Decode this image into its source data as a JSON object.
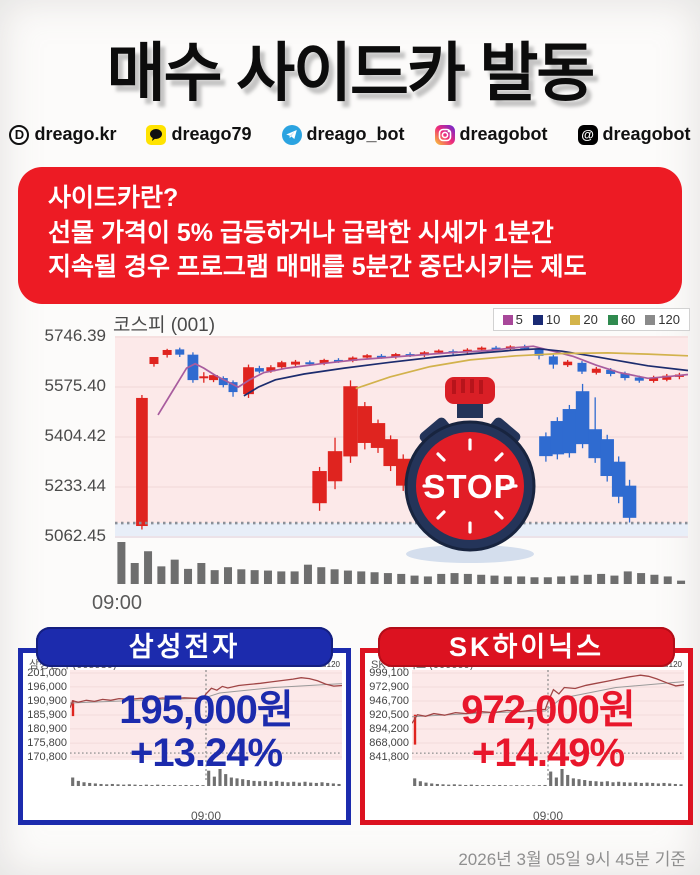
{
  "poster": {
    "title": "매수 사이드카 발동",
    "social": [
      {
        "icon": "blog-d-icon",
        "label": "dreago.kr"
      },
      {
        "icon": "kakao-icon",
        "label": "dreago79"
      },
      {
        "icon": "telegram-icon",
        "label": "dreago_bot"
      },
      {
        "icon": "instagram-icon",
        "label": "dreagobot"
      },
      {
        "icon": "threads-icon",
        "label": "dreagobot"
      }
    ],
    "info_box": {
      "heading": "사이드카란?",
      "line1": "선물 가격이 5% 급등하거나 급락한 시세가 1분간",
      "line2": "지속될 경우 프로그램 매매를 5분간 중단시키는 제도"
    },
    "stopwatch_label": "STOP",
    "footer": "2026년 3월 05일 9시 45분 기준"
  },
  "panels": [
    {
      "header": "삼성전자"
    },
    {
      "header": "SK하이닉스"
    }
  ],
  "colors": {
    "info_red": "#ed1b24",
    "candle_up": "#df241f",
    "candle_down": "#2f6bd0",
    "plot_bg_pink": "#fce9e9",
    "plot_bg_blue": "#e8eef8",
    "grid_pink": "#efd7d7",
    "volume_gray": "#6e6e6e",
    "ref_dotted": "#8a8f98",
    "samsung_blue": "#1c2bad",
    "sk_red": "#dc1220"
  },
  "chart_data": [
    {
      "id": "kospi",
      "type": "candlestick",
      "title": "코스피 (001)",
      "legend": [
        {
          "label": "5",
          "color": "#a8489a"
        },
        {
          "label": "10",
          "color": "#1a2a74"
        },
        {
          "label": "20",
          "color": "#d4b44a"
        },
        {
          "label": "60",
          "color": "#2f8a4f"
        },
        {
          "label": "120",
          "color": "#8a8a8a"
        }
      ],
      "y_tick_labels": [
        "5746.39",
        "5575.40",
        "5404.42",
        "5233.44",
        "5062.45"
      ],
      "x_ticks": [
        "09:00"
      ],
      "prev_close": 5110,
      "candles": [
        [
          0.047,
          5100,
          5548,
          5088,
          5538,
          "u",
          1.3
        ],
        [
          0.068,
          5654,
          5666,
          5645,
          5678,
          "u",
          1
        ],
        [
          0.091,
          5685,
          5706,
          5676,
          5702,
          "u",
          1
        ],
        [
          0.113,
          5704,
          5710,
          5678,
          5686,
          "d",
          1
        ],
        [
          0.136,
          5686,
          5694,
          5590,
          5599,
          "d",
          1.2
        ],
        [
          0.155,
          5607,
          5626,
          5590,
          5612,
          "u",
          1
        ],
        [
          0.172,
          5599,
          5620,
          5592,
          5616,
          "u",
          1
        ],
        [
          0.189,
          5606,
          5612,
          5574,
          5582,
          "d",
          1
        ],
        [
          0.206,
          5592,
          5598,
          5542,
          5558,
          "d",
          1
        ],
        [
          0.233,
          5551,
          5652,
          5538,
          5643,
          "u",
          1.2
        ],
        [
          0.252,
          5640,
          5648,
          5622,
          5628,
          "d",
          1
        ],
        [
          0.272,
          5629,
          5650,
          5624,
          5643,
          "u",
          1
        ],
        [
          0.291,
          5643,
          5665,
          5638,
          5660,
          "u",
          1
        ],
        [
          0.315,
          5652,
          5668,
          5646,
          5662,
          "u",
          1
        ],
        [
          0.34,
          5660,
          5666,
          5648,
          5655,
          "d",
          1
        ],
        [
          0.365,
          5656,
          5672,
          5650,
          5668,
          "u",
          1
        ],
        [
          0.39,
          5668,
          5674,
          5658,
          5664,
          "d",
          1
        ],
        [
          0.415,
          5665,
          5680,
          5660,
          5676,
          "u",
          1
        ],
        [
          0.44,
          5676,
          5688,
          5670,
          5684,
          "u",
          1
        ],
        [
          0.465,
          5682,
          5688,
          5672,
          5676,
          "d",
          1
        ],
        [
          0.49,
          5678,
          5692,
          5672,
          5688,
          "u",
          1
        ],
        [
          0.515,
          5688,
          5694,
          5678,
          5682,
          "d",
          1
        ],
        [
          0.54,
          5684,
          5698,
          5678,
          5694,
          "u",
          1
        ],
        [
          0.565,
          5694,
          5704,
          5688,
          5700,
          "u",
          1
        ],
        [
          0.59,
          5698,
          5704,
          5686,
          5692,
          "d",
          1
        ],
        [
          0.615,
          5694,
          5708,
          5688,
          5703,
          "u",
          1
        ],
        [
          0.64,
          5703,
          5714,
          5698,
          5710,
          "u",
          1
        ],
        [
          0.665,
          5710,
          5716,
          5700,
          5704,
          "d",
          1
        ],
        [
          0.69,
          5706,
          5718,
          5700,
          5714,
          "u",
          1
        ],
        [
          0.715,
          5714,
          5720,
          5702,
          5706,
          "d",
          1
        ],
        [
          0.74,
          5704,
          5712,
          5670,
          5682,
          "d",
          1
        ],
        [
          0.765,
          5680,
          5686,
          5638,
          5652,
          "d",
          1
        ],
        [
          0.79,
          5650,
          5668,
          5644,
          5662,
          "u",
          1
        ],
        [
          0.815,
          5658,
          5664,
          5620,
          5628,
          "d",
          1
        ],
        [
          0.84,
          5624,
          5644,
          5618,
          5638,
          "u",
          1
        ],
        [
          0.865,
          5634,
          5640,
          5612,
          5620,
          "d",
          1
        ],
        [
          0.89,
          5622,
          5628,
          5598,
          5606,
          "d",
          1
        ],
        [
          0.915,
          5608,
          5614,
          5590,
          5597,
          "d",
          1
        ],
        [
          0.94,
          5596,
          5614,
          5590,
          5608,
          "u",
          1
        ],
        [
          0.963,
          5600,
          5620,
          5595,
          5614,
          "u",
          1
        ],
        [
          0.985,
          5610,
          5624,
          5602,
          5618,
          "u",
          1
        ],
        [
          0.357,
          5178,
          5302,
          5152,
          5288,
          "u",
          1.6
        ],
        [
          0.384,
          5253,
          5402,
          5226,
          5356,
          "u",
          1.6
        ],
        [
          0.411,
          5338,
          5598,
          5316,
          5578,
          "u",
          1.6
        ],
        [
          0.436,
          5384,
          5524,
          5362,
          5510,
          "u",
          1.6
        ],
        [
          0.459,
          5367,
          5464,
          5350,
          5452,
          "u",
          1.6
        ],
        [
          0.481,
          5305,
          5410,
          5288,
          5397,
          "u",
          1.6
        ],
        [
          0.503,
          5238,
          5345,
          5220,
          5330,
          "u",
          1.6
        ],
        [
          0.752,
          5339,
          5420,
          5320,
          5407,
          "d",
          1.5
        ],
        [
          0.772,
          5345,
          5472,
          5328,
          5459,
          "d",
          1.5
        ],
        [
          0.793,
          5349,
          5514,
          5334,
          5500,
          "d",
          1.5
        ],
        [
          0.816,
          5380,
          5586,
          5366,
          5561,
          "d",
          1.5
        ],
        [
          0.838,
          5332,
          5540,
          5316,
          5431,
          "d",
          1.5
        ],
        [
          0.859,
          5271,
          5412,
          5252,
          5397,
          "d",
          1.5
        ],
        [
          0.879,
          5200,
          5338,
          5178,
          5320,
          "d",
          1.5
        ],
        [
          0.898,
          5128,
          5258,
          5112,
          5238,
          "d",
          1.5
        ]
      ],
      "ma_lines": {
        "ma5": {
          "color": "#a85c9e",
          "pts": [
            [
              0.075,
              5480
            ],
            [
              0.1,
              5560
            ],
            [
              0.125,
              5640
            ],
            [
              0.14,
              5655
            ],
            [
              0.155,
              5640
            ],
            [
              0.175,
              5615
            ],
            [
              0.2,
              5590
            ],
            [
              0.215,
              5575
            ],
            [
              0.235,
              5600
            ],
            [
              0.26,
              5625
            ],
            [
              0.3,
              5640
            ],
            [
              0.36,
              5655
            ],
            [
              0.42,
              5668
            ],
            [
              0.5,
              5680
            ],
            [
              0.58,
              5692
            ],
            [
              0.65,
              5700
            ],
            [
              0.7,
              5710
            ],
            [
              0.73,
              5715
            ],
            [
              0.76,
              5700
            ],
            [
              0.8,
              5680
            ],
            [
              0.84,
              5650
            ],
            [
              0.88,
              5625
            ],
            [
              0.93,
              5605
            ],
            [
              0.97,
              5612
            ],
            [
              1,
              5618
            ]
          ]
        },
        "ma10": {
          "color": "#1c2c6e",
          "pts": [
            [
              0.225,
              5545
            ],
            [
              0.25,
              5575
            ],
            [
              0.28,
              5600
            ],
            [
              0.33,
              5620
            ],
            [
              0.4,
              5640
            ],
            [
              0.48,
              5660
            ],
            [
              0.56,
              5678
            ],
            [
              0.64,
              5692
            ],
            [
              0.7,
              5702
            ],
            [
              0.74,
              5706
            ],
            [
              0.78,
              5698
            ],
            [
              0.83,
              5682
            ],
            [
              0.88,
              5665
            ],
            [
              0.93,
              5648
            ],
            [
              1,
              5632
            ]
          ]
        },
        "ma20": {
          "color": "#d2b24c",
          "pts": [
            [
              0.42,
              5570
            ],
            [
              0.48,
              5610
            ],
            [
              0.55,
              5645
            ],
            [
              0.62,
              5668
            ],
            [
              0.7,
              5682
            ],
            [
              0.78,
              5690
            ],
            [
              0.86,
              5692
            ],
            [
              0.93,
              5688
            ],
            [
              1,
              5682
            ]
          ]
        }
      },
      "volume": [
        1.0,
        0.5,
        0.78,
        0.42,
        0.58,
        0.36,
        0.5,
        0.33,
        0.4,
        0.35,
        0.33,
        0.32,
        0.3,
        0.3,
        0.46,
        0.4,
        0.35,
        0.32,
        0.3,
        0.28,
        0.26,
        0.24,
        0.2,
        0.18,
        0.24,
        0.26,
        0.24,
        0.22,
        0.2,
        0.18,
        0.18,
        0.16,
        0.16,
        0.18,
        0.2,
        0.22,
        0.24,
        0.2,
        0.3,
        0.26,
        0.22,
        0.18,
        0.08
      ]
    },
    {
      "id": "samsung",
      "type": "line",
      "title": "삼성전자 (005930)",
      "price_label": "195,000원",
      "change_label": "+13.24%",
      "y_tick_labels": [
        "201,000",
        "196,000",
        "190,900",
        "185,900",
        "180,900",
        "175,800",
        "170,800"
      ],
      "x_ticks": [
        "09:00"
      ],
      "prev_close": 172200,
      "open_spike": [
        185500,
        191200
      ],
      "line": [
        [
          0,
          188500
        ],
        [
          0.01,
          191000
        ],
        [
          0.03,
          190500
        ],
        [
          0.06,
          191200
        ],
        [
          0.09,
          190800
        ],
        [
          0.12,
          191500
        ],
        [
          0.15,
          191200
        ],
        [
          0.18,
          191800
        ],
        [
          0.22,
          191500
        ],
        [
          0.26,
          191900
        ],
        [
          0.3,
          191600
        ],
        [
          0.34,
          192000
        ],
        [
          0.38,
          191800
        ],
        [
          0.42,
          192100
        ],
        [
          0.46,
          191900
        ],
        [
          0.49,
          192000
        ],
        [
          0.5,
          193500
        ],
        [
          0.52,
          195500
        ],
        [
          0.54,
          194800
        ],
        [
          0.56,
          196200
        ],
        [
          0.58,
          195600
        ],
        [
          0.62,
          196500
        ],
        [
          0.66,
          196900
        ],
        [
          0.7,
          197300
        ],
        [
          0.74,
          197800
        ],
        [
          0.78,
          198300
        ],
        [
          0.82,
          198800
        ],
        [
          0.85,
          199300
        ],
        [
          0.88,
          199000
        ],
        [
          0.91,
          198200
        ],
        [
          0.94,
          197000
        ],
        [
          0.97,
          196300
        ],
        [
          1,
          196500
        ]
      ],
      "trend_line": [
        [
          0,
          190200
        ],
        [
          0.25,
          191200
        ],
        [
          0.49,
          191900
        ],
        [
          0.55,
          193800
        ],
        [
          0.75,
          195800
        ],
        [
          1,
          197200
        ]
      ],
      "volume": [
        0.5,
        0.3,
        0.22,
        0.18,
        0.15,
        0.12,
        0.1,
        0.12,
        0.1,
        0.08,
        0.1,
        0.08,
        0.06,
        0.08,
        0.06,
        0.08,
        0.06,
        0.05,
        0.06,
        0.05,
        0.06,
        0.05,
        0.06,
        0.05,
        0.9,
        0.55,
        1.0,
        0.7,
        0.5,
        0.45,
        0.4,
        0.35,
        0.3,
        0.28,
        0.3,
        0.25,
        0.3,
        0.25,
        0.22,
        0.25,
        0.2,
        0.25,
        0.2,
        0.18,
        0.22,
        0.18,
        0.15,
        0.12
      ]
    },
    {
      "id": "skhynix",
      "type": "line",
      "title": "SK하이닉스 (000660)",
      "price_label": "972,000원",
      "change_label": "+14.49%",
      "y_tick_labels": [
        "999,100",
        "972,900",
        "946,700",
        "920,500",
        "894,200",
        "868,000",
        "841,800"
      ],
      "x_ticks": [
        "09:00"
      ],
      "prev_close": 849000,
      "open_spike": [
        865000,
        921000
      ],
      "line": [
        [
          0,
          905000
        ],
        [
          0.02,
          921000
        ],
        [
          0.05,
          918000
        ],
        [
          0.08,
          923000
        ],
        [
          0.12,
          920000
        ],
        [
          0.16,
          925000
        ],
        [
          0.2,
          923000
        ],
        [
          0.25,
          927000
        ],
        [
          0.3,
          925000
        ],
        [
          0.35,
          929000
        ],
        [
          0.4,
          927000
        ],
        [
          0.45,
          930000
        ],
        [
          0.49,
          931000
        ],
        [
          0.5,
          945000
        ],
        [
          0.52,
          968000
        ],
        [
          0.54,
          960000
        ],
        [
          0.56,
          972000
        ],
        [
          0.6,
          970000
        ],
        [
          0.64,
          976000
        ],
        [
          0.68,
          980000
        ],
        [
          0.72,
          984000
        ],
        [
          0.76,
          988000
        ],
        [
          0.8,
          992000
        ],
        [
          0.84,
          995000
        ],
        [
          0.87,
          993000
        ],
        [
          0.9,
          988000
        ],
        [
          0.94,
          980000
        ],
        [
          0.97,
          975000
        ],
        [
          1,
          977000
        ]
      ],
      "trend_line": [
        [
          0,
          917000
        ],
        [
          0.25,
          924000
        ],
        [
          0.49,
          928000
        ],
        [
          0.55,
          952000
        ],
        [
          0.75,
          972000
        ],
        [
          1,
          983000
        ]
      ],
      "volume": [
        0.45,
        0.28,
        0.2,
        0.15,
        0.12,
        0.1,
        0.08,
        0.1,
        0.08,
        0.06,
        0.08,
        0.06,
        0.05,
        0.06,
        0.05,
        0.06,
        0.05,
        0.04,
        0.05,
        0.04,
        0.05,
        0.04,
        0.05,
        0.06,
        0.85,
        0.5,
        1.0,
        0.65,
        0.45,
        0.4,
        0.35,
        0.3,
        0.28,
        0.25,
        0.28,
        0.22,
        0.25,
        0.22,
        0.2,
        0.22,
        0.18,
        0.2,
        0.18,
        0.15,
        0.18,
        0.15,
        0.12,
        0.1
      ]
    }
  ]
}
